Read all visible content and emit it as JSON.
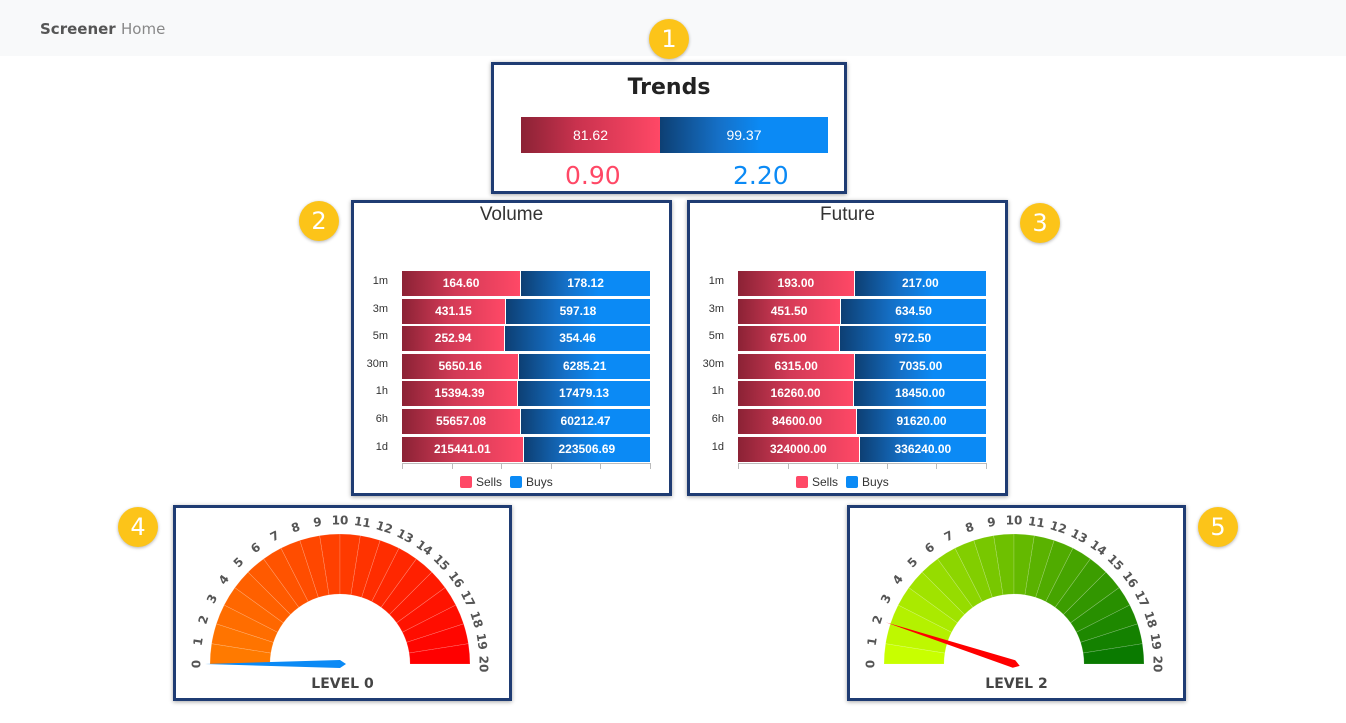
{
  "navbar": {
    "brand": "Screener",
    "home": "Home"
  },
  "badges": [
    "1",
    "2",
    "3",
    "4",
    "5"
  ],
  "trends": {
    "title": "Trends",
    "sells_value": "81.62",
    "buys_value": "99.37",
    "sell_ratio": "0.90",
    "buy_ratio": "2.20",
    "sell_color": "#ff4866",
    "buy_color": "#0b8af5"
  },
  "chart_data": [
    {
      "type": "bar",
      "stacked": true,
      "orientation": "horizontal",
      "title": "Volume",
      "categories": [
        "1m",
        "3m",
        "5m",
        "30m",
        "1h",
        "6h",
        "1d"
      ],
      "series": [
        {
          "name": "Sells",
          "values": [
            164.6,
            431.15,
            252.94,
            5650.16,
            15394.39,
            55657.08,
            215441.01
          ],
          "labels": [
            "164.60",
            "431.15",
            "252.94",
            "5650.16",
            "15394.39",
            "55657.08",
            "215441.01"
          ],
          "color": "#ff4866"
        },
        {
          "name": "Buys",
          "values": [
            178.12,
            597.18,
            354.46,
            6285.21,
            17479.13,
            60212.47,
            223506.69
          ],
          "labels": [
            "178.12",
            "597.18",
            "354.46",
            "6285.21",
            "17479.13",
            "60212.47",
            "223506.69"
          ],
          "color": "#0b8af5"
        }
      ],
      "normalized": true,
      "legend": "bottom"
    },
    {
      "type": "bar",
      "stacked": true,
      "orientation": "horizontal",
      "title": "Future",
      "categories": [
        "1m",
        "3m",
        "5m",
        "30m",
        "1h",
        "6h",
        "1d"
      ],
      "series": [
        {
          "name": "Sells",
          "values": [
            193.0,
            451.5,
            675.0,
            6315.0,
            16260.0,
            84600.0,
            324000.0
          ],
          "labels": [
            "193.00",
            "451.50",
            "675.00",
            "6315.00",
            "16260.00",
            "84600.00",
            "324000.00"
          ],
          "color": "#ff4866"
        },
        {
          "name": "Buys",
          "values": [
            217.0,
            634.5,
            972.5,
            7035.0,
            18450.0,
            91620.0,
            336240.0
          ],
          "labels": [
            "217.00",
            "634.50",
            "972.50",
            "7035.00",
            "18450.00",
            "91620.00",
            "336240.00"
          ],
          "color": "#0b8af5"
        }
      ],
      "normalized": true,
      "legend": "bottom"
    }
  ],
  "gauges": [
    {
      "label": "LEVEL 0",
      "value": 0,
      "min": 0,
      "max": 20,
      "scheme": "orange-red",
      "needle_color": "#0b8af5",
      "start_color": "#ff7a00",
      "end_color": "#ff0000",
      "ticks": [
        "0",
        "1",
        "2",
        "3",
        "4",
        "5",
        "6",
        "7",
        "8",
        "9",
        "10",
        "11",
        "12",
        "13",
        "14",
        "15",
        "16",
        "17",
        "18",
        "19",
        "20"
      ]
    },
    {
      "label": "LEVEL 2",
      "value": 2,
      "min": 0,
      "max": 20,
      "scheme": "lime-green",
      "needle_color": "#ff0000",
      "start_color": "#c8ff00",
      "end_color": "#0a7a00",
      "ticks": [
        "0",
        "1",
        "2",
        "3",
        "4",
        "5",
        "6",
        "7",
        "8",
        "9",
        "10",
        "11",
        "12",
        "13",
        "14",
        "15",
        "16",
        "17",
        "18",
        "19",
        "20"
      ]
    }
  ]
}
